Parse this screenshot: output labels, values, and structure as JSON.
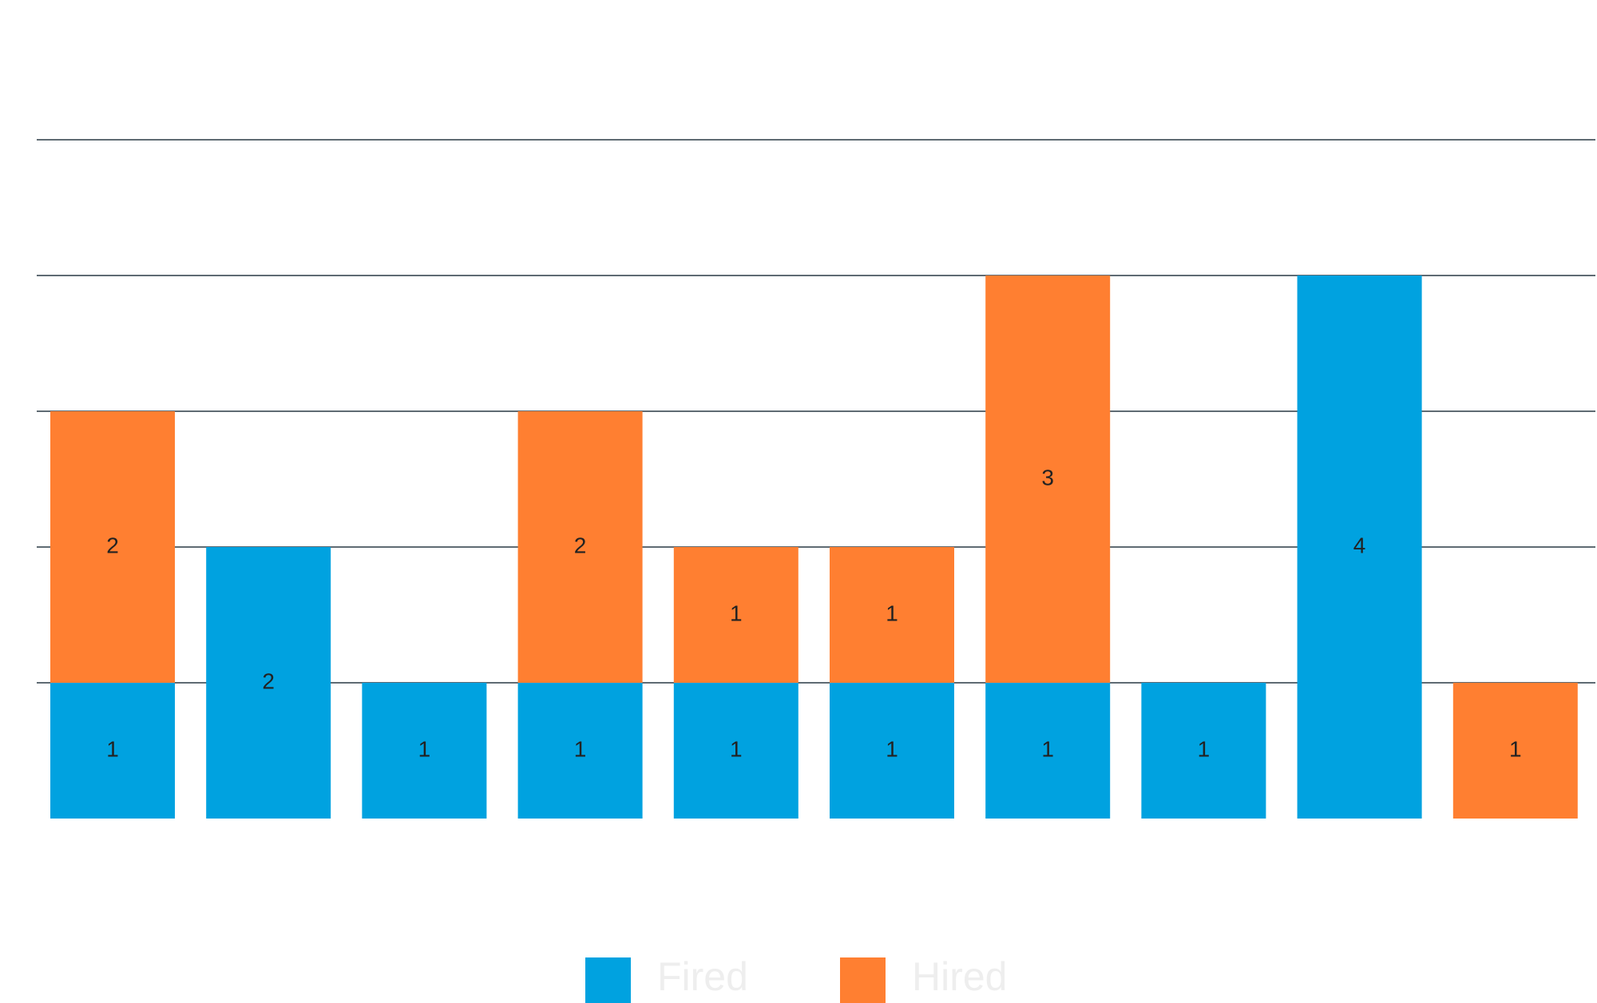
{
  "chart_data": {
    "type": "bar",
    "stacked": true,
    "categories": [
      "",
      "",
      "",
      "",
      "",
      "",
      "",
      "",
      "",
      ""
    ],
    "series": [
      {
        "name": "Fired",
        "values": [
          1,
          2,
          1,
          1,
          1,
          1,
          1,
          1,
          4,
          0
        ]
      },
      {
        "name": "Hired",
        "values": [
          2,
          0,
          0,
          2,
          1,
          1,
          3,
          0,
          0,
          1
        ]
      }
    ],
    "colors": {
      "Fired": "#00a2e0",
      "Hired": "#ff7f31"
    },
    "ylim": [
      0,
      5
    ],
    "grid": true,
    "legend_position": "bottom",
    "title": "",
    "xlabel": "",
    "ylabel": ""
  }
}
